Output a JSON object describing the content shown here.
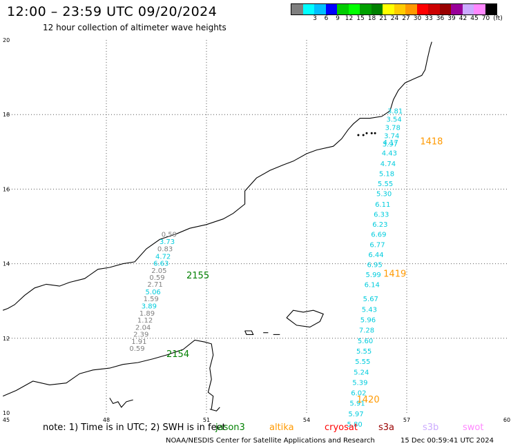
{
  "header": {
    "title": "12:00 – 23:59 UTC 09/20/2024",
    "subtitle": "12 hour collection of altimeter wave heights"
  },
  "legend": {
    "unit": "(ft)",
    "swatches": [
      {
        "color": "#7f7f7f",
        "label": ""
      },
      {
        "color": "#00ffff",
        "label": "3"
      },
      {
        "color": "#00bfff",
        "label": "6"
      },
      {
        "color": "#0000ff",
        "label": "9"
      },
      {
        "color": "#00cc00",
        "label": "12"
      },
      {
        "color": "#00ff00",
        "label": "15"
      },
      {
        "color": "#00a000",
        "label": "18"
      },
      {
        "color": "#008000",
        "label": "21"
      },
      {
        "color": "#ffff00",
        "label": "24"
      },
      {
        "color": "#ffcc00",
        "label": "27"
      },
      {
        "color": "#ff9900",
        "label": "30"
      },
      {
        "color": "#ff0000",
        "label": "33"
      },
      {
        "color": "#cc0000",
        "label": "36"
      },
      {
        "color": "#990000",
        "label": "39"
      },
      {
        "color": "#990099",
        "label": "42"
      },
      {
        "color": "#ccaaff",
        "label": "45"
      },
      {
        "color": "#ff88ff",
        "label": "70"
      },
      {
        "color": "#000000",
        "label": ""
      }
    ]
  },
  "map": {
    "x_ticks": [
      "45",
      "48",
      "51",
      "54",
      "57",
      "60"
    ],
    "y_ticks": [
      "20",
      "18",
      "16",
      "14",
      "12",
      "10"
    ],
    "track_labels": [
      {
        "text": "2155",
        "lon": 50.4,
        "lat": 13.6,
        "color": "#008000"
      },
      {
        "text": "2154",
        "lon": 49.8,
        "lat": 11.5,
        "color": "#008000"
      },
      {
        "text": "1418",
        "lon": 57.4,
        "lat": 17.2,
        "color": "#ff9900"
      },
      {
        "text": "1419",
        "lon": 56.3,
        "lat": 13.65,
        "color": "#ff9900"
      },
      {
        "text": "1420",
        "lon": 55.5,
        "lat": 10.28,
        "color": "#ff9900"
      }
    ],
    "tracks": [
      {
        "name": "jason-track-2155",
        "color_gray": "#7f7f7f",
        "color_cyan": "#00ccdd",
        "points": [
          {
            "v": "0.59",
            "lon": 49.88,
            "lat": 14.72,
            "c": "gray"
          },
          {
            "v": "3.73",
            "lon": 49.82,
            "lat": 14.53,
            "c": "cyan"
          },
          {
            "v": "0.83",
            "lon": 49.76,
            "lat": 14.33,
            "c": "gray"
          },
          {
            "v": "4.72",
            "lon": 49.7,
            "lat": 14.13,
            "c": "cyan"
          },
          {
            "v": "6.63",
            "lon": 49.64,
            "lat": 13.95,
            "c": "cyan"
          },
          {
            "v": "2.05",
            "lon": 49.58,
            "lat": 13.75,
            "c": "gray"
          },
          {
            "v": "0.59",
            "lon": 49.52,
            "lat": 13.57,
            "c": "gray"
          },
          {
            "v": "2.71",
            "lon": 49.46,
            "lat": 13.38,
            "c": "gray"
          },
          {
            "v": "5.06",
            "lon": 49.4,
            "lat": 13.18,
            "c": "cyan"
          },
          {
            "v": "1.59",
            "lon": 49.34,
            "lat": 12.99,
            "c": "gray"
          },
          {
            "v": "3.89",
            "lon": 49.28,
            "lat": 12.8,
            "c": "cyan"
          },
          {
            "v": "1.89",
            "lon": 49.22,
            "lat": 12.61,
            "c": "gray"
          },
          {
            "v": "1.12",
            "lon": 49.16,
            "lat": 12.42,
            "c": "gray"
          },
          {
            "v": "2.04",
            "lon": 49.1,
            "lat": 12.23,
            "c": "gray"
          },
          {
            "v": "2.39",
            "lon": 49.04,
            "lat": 12.04,
            "c": "gray"
          },
          {
            "v": "1.91",
            "lon": 48.98,
            "lat": 11.85,
            "c": "gray"
          },
          {
            "v": "0.59",
            "lon": 48.92,
            "lat": 11.66,
            "c": "gray"
          }
        ]
      },
      {
        "name": "altika-track-1418-1420",
        "color_cyan": "#00ccdd",
        "points": [
          {
            "v": "3.81",
            "lon": 56.65,
            "lat": 18.03
          },
          {
            "v": "3.54",
            "lon": 56.62,
            "lat": 17.81
          },
          {
            "v": "3.78",
            "lon": 56.58,
            "lat": 17.59
          },
          {
            "v": "3.74",
            "lon": 56.55,
            "lat": 17.37
          },
          {
            "v": "4.17",
            "lon": 56.52,
            "lat": 17.19
          },
          {
            "v": "3.97",
            "lon": 56.5,
            "lat": 17.14
          },
          {
            "v": "4.43",
            "lon": 56.48,
            "lat": 16.9
          },
          {
            "v": "4.74",
            "lon": 56.44,
            "lat": 16.62
          },
          {
            "v": "5.18",
            "lon": 56.4,
            "lat": 16.35
          },
          {
            "v": "5.55",
            "lon": 56.36,
            "lat": 16.08
          },
          {
            "v": "5.30",
            "lon": 56.32,
            "lat": 15.81
          },
          {
            "v": "6.11",
            "lon": 56.28,
            "lat": 15.53
          },
          {
            "v": "6.33",
            "lon": 56.24,
            "lat": 15.26
          },
          {
            "v": "6.23",
            "lon": 56.2,
            "lat": 14.99
          },
          {
            "v": "6.69",
            "lon": 56.16,
            "lat": 14.72
          },
          {
            "v": "6.77",
            "lon": 56.12,
            "lat": 14.45
          },
          {
            "v": "6.44",
            "lon": 56.08,
            "lat": 14.18
          },
          {
            "v": "6.95",
            "lon": 56.04,
            "lat": 13.91
          },
          {
            "v": "5.99",
            "lon": 56.0,
            "lat": 13.64
          },
          {
            "v": "6.14",
            "lon": 55.96,
            "lat": 13.37
          },
          {
            "v": "5.67",
            "lon": 55.92,
            "lat": 12.99
          },
          {
            "v": "5.43",
            "lon": 55.88,
            "lat": 12.71
          },
          {
            "v": "5.96",
            "lon": 55.84,
            "lat": 12.43
          },
          {
            "v": "7.28",
            "lon": 55.8,
            "lat": 12.15
          },
          {
            "v": "5.60",
            "lon": 55.76,
            "lat": 11.87
          },
          {
            "v": "5.55",
            "lon": 55.72,
            "lat": 11.59
          },
          {
            "v": "5.55",
            "lon": 55.68,
            "lat": 11.31
          },
          {
            "v": "5.24",
            "lon": 55.64,
            "lat": 11.03
          },
          {
            "v": "5.39",
            "lon": 55.6,
            "lat": 10.75
          },
          {
            "v": "6.02",
            "lon": 55.56,
            "lat": 10.47
          },
          {
            "v": "5.91",
            "lon": 55.52,
            "lat": 10.19
          },
          {
            "v": "5.97",
            "lon": 55.48,
            "lat": 9.91
          },
          {
            "v": "5.80",
            "lon": 55.44,
            "lat": 9.63
          }
        ]
      }
    ]
  },
  "notes": {
    "note": "note:  1) Time is in UTC; 2) SWH is in feet",
    "missions": [
      {
        "name": "jason3",
        "color": "#008000"
      },
      {
        "name": "altika",
        "color": "#ff9900"
      },
      {
        "name": "cryosat",
        "color": "#ff0000"
      },
      {
        "name": "s3a",
        "color": "#990000"
      },
      {
        "name": "s3b",
        "color": "#ccaaff"
      },
      {
        "name": "swot",
        "color": "#ff88ff"
      }
    ]
  },
  "footer": {
    "left": "NOAA/NESDIS Center for Satellite Applications and Research",
    "right": "15 Dec 00:59:41 UTC 2024"
  }
}
